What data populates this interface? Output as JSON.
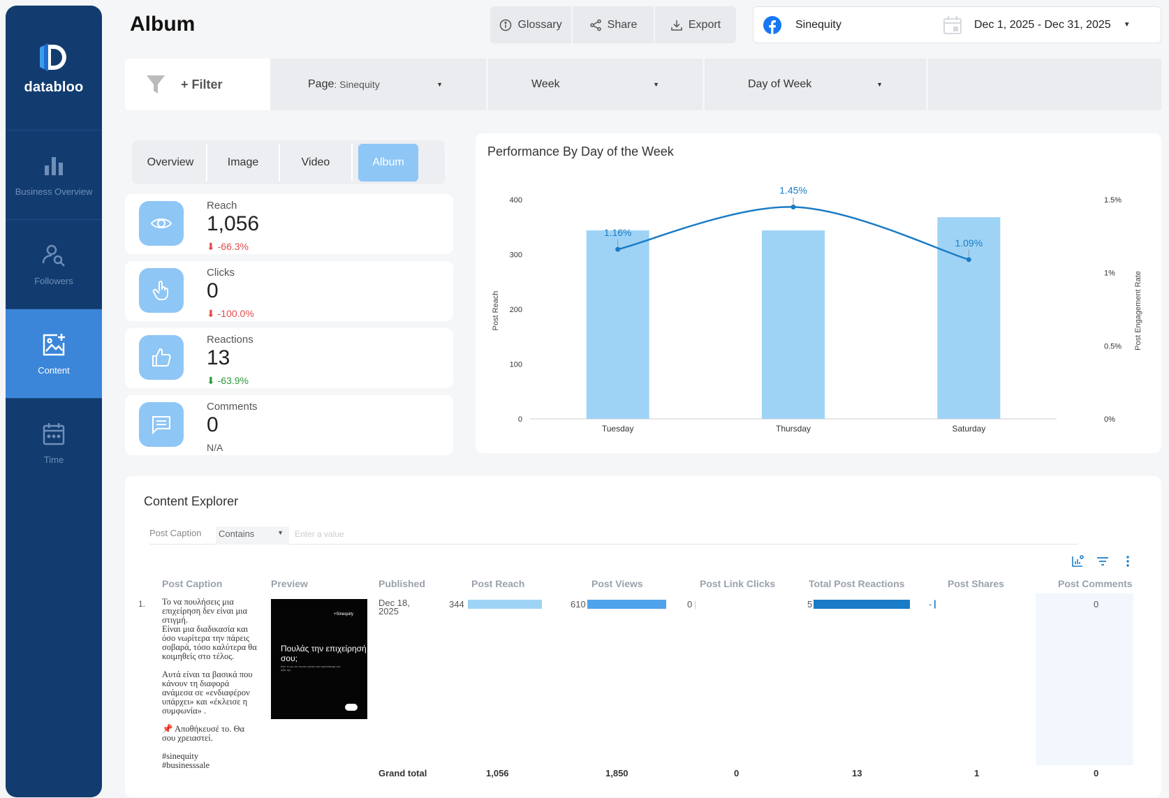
{
  "brand": {
    "name": "databloo"
  },
  "nav": [
    {
      "label": "Business Overview",
      "icon": "bar-chart-icon"
    },
    {
      "label": "Followers",
      "icon": "user-search-icon"
    },
    {
      "label": "Content",
      "icon": "image-add-icon",
      "active": true
    },
    {
      "label": "Time",
      "icon": "calendar-icon"
    }
  ],
  "header": {
    "title": "Album",
    "glossary": "Glossary",
    "share": "Share",
    "export": "Export",
    "account": "Sinequity",
    "date_range": "Dec 1, 2025 - Dec 31, 2025"
  },
  "filters": {
    "add_filter": "+ Filter",
    "page_label": "Page",
    "page_value": ": Sinequity",
    "week": "Week",
    "day_of_week": "Day of Week"
  },
  "tabs": [
    "Overview",
    "Image",
    "Video",
    "Album"
  ],
  "kpis": [
    {
      "label": "Reach",
      "value": "1,056",
      "delta": "-66.3%",
      "trend": "down"
    },
    {
      "label": "Clicks",
      "value": "0",
      "delta": "-100.0%",
      "trend": "down"
    },
    {
      "label": "Reactions",
      "value": "13",
      "delta": "-63.9%",
      "trend": "down-good"
    },
    {
      "label": "Comments",
      "value": "0",
      "delta": "N/A",
      "trend": "none"
    }
  ],
  "chart_data": {
    "type": "bar",
    "title": "Performance By Day of the Week",
    "categories": [
      "Tuesday",
      "Thursday",
      "Saturday"
    ],
    "series": [
      {
        "name": "Post Reach",
        "type": "bar",
        "axis": "left",
        "values": [
          344,
          344,
          368
        ],
        "color": "#9fd3f5"
      },
      {
        "name": "Post Engagement Rate",
        "type": "line",
        "axis": "right",
        "values": [
          1.16,
          1.45,
          1.09
        ],
        "labels": [
          "1.16%",
          "1.45%",
          "1.09%"
        ],
        "color": "#1a7cc6"
      }
    ],
    "ylabel": "Post Reach",
    "ylabel_right": "Post Engagement Rate",
    "ylim": [
      0,
      400
    ],
    "yticks": [
      "0",
      "100",
      "200",
      "300",
      "400"
    ],
    "ylim_right": [
      0,
      1.5
    ],
    "yticks_right": [
      "0%",
      "0.5%",
      "1%",
      "1.5%"
    ],
    "grid": false
  },
  "content_explorer": {
    "title": "Content Explorer",
    "filter_column": "Post Caption",
    "filter_operator": "Contains",
    "filter_placeholder": "Enter a value",
    "columns": [
      "Post Caption",
      "Preview",
      "Published",
      "Post Reach",
      "Post Views",
      "Post Link Clicks",
      "Total Post Reactions",
      "Post Shares",
      "Post Comments"
    ],
    "rows": [
      {
        "index": "1.",
        "caption": "Το να πουλήσεις μια επιχείρηση δεν είναι μια στιγμή.\nΕίναι μια διαδικασία και όσο νωρίτερα την πάρεις σοβαρά, τόσο καλύτερα θα κοιμηθείς στο τέλος.\n\nΑυτά είναι τα βασικά που κάνουν τη διαφορά ανάμεσα σε «ενδιαφέρον υπάρχει» και «έκλεισε η συμφωνία» .\n\n📌 Αποθήκευσέ το. Θα σου χρειαστεί.\n\n#sinequity\n#businesssale",
        "preview_brand": "+Sinequity",
        "preview_title": "Πουλάς την επιχείρησή σου;",
        "preview_sub": "Κάν' το με τον σωστό τρόπο και προστάτεψε την αξία της.",
        "published": "Dec 18, 2025",
        "reach": "344",
        "reach_frac": 0.56,
        "views": "610",
        "views_frac": 1.0,
        "link_clicks": "0",
        "reactions": "5",
        "reactions_frac": 1.0,
        "shares": "-",
        "comments": "0"
      }
    ],
    "grand_total": {
      "label": "Grand total",
      "reach": "1,056",
      "views": "1,850",
      "link_clicks": "0",
      "reactions": "13",
      "shares": "1",
      "comments": "0"
    }
  }
}
